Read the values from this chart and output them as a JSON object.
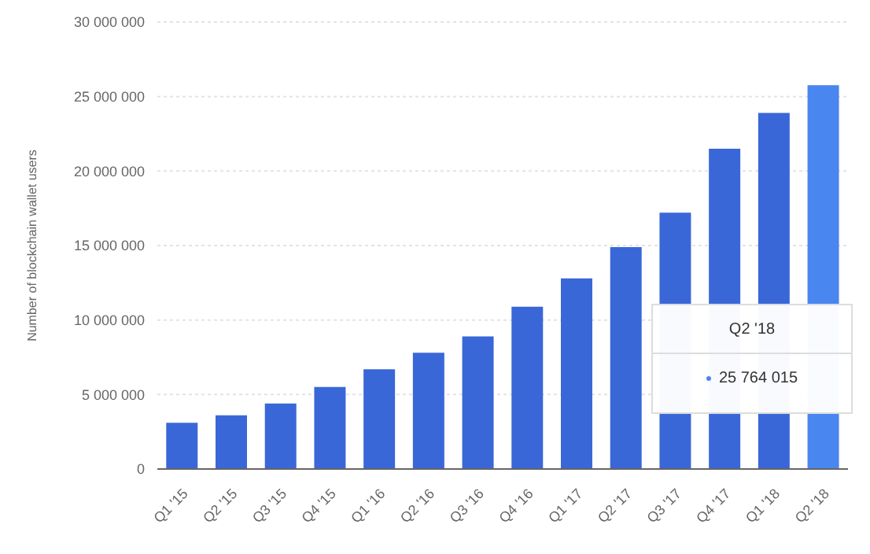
{
  "chart_data": {
    "type": "bar",
    "ylabel": "Number of blockchain wallet users",
    "categories": [
      "Q1 '15",
      "Q2 '15",
      "Q3 '15",
      "Q4 '15",
      "Q1 '16",
      "Q2 '16",
      "Q3 '16",
      "Q4 '16",
      "Q1 '17",
      "Q2 '17",
      "Q3 '17",
      "Q4 '17",
      "Q1 '18",
      "Q2 '18"
    ],
    "values": [
      3100000,
      3600000,
      4400000,
      5500000,
      6700000,
      7800000,
      8900000,
      10900000,
      12800000,
      14900000,
      17200000,
      21500000,
      23900000,
      25764015
    ],
    "colors": [
      "#3a67d8",
      "#3a67d8",
      "#3a67d8",
      "#3a67d8",
      "#3a67d8",
      "#3a67d8",
      "#3a67d8",
      "#3a67d8",
      "#3a67d8",
      "#3a67d8",
      "#3a67d8",
      "#3a67d8",
      "#3a67d8",
      "#4a86f0"
    ],
    "ylim": [
      0,
      30000000
    ],
    "yticks": [
      0,
      5000000,
      10000000,
      15000000,
      20000000,
      25000000,
      30000000
    ],
    "grid": "y",
    "annotations": [
      "Q2 '18",
      "25 764 015"
    ]
  }
}
